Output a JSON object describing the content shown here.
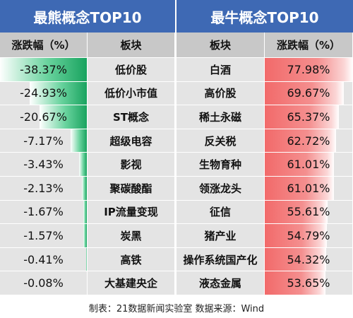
{
  "header": {
    "left_title": "最熊概念TOP10",
    "right_title": "最牛概念TOP10"
  },
  "columns": {
    "left_change": "涨跌幅（%）",
    "left_sector": "板块",
    "right_sector": "板块",
    "right_change": "涨跌幅（%）"
  },
  "chart_data": [
    {
      "type": "table",
      "title": "最熊概念TOP10",
      "columns": [
        "涨跌幅（%）",
        "板块"
      ],
      "rows": [
        {
          "sector": "低价股",
          "value": -38.37,
          "label": "-38.37%"
        },
        {
          "sector": "低价小市值",
          "value": -24.93,
          "label": "-24.93%"
        },
        {
          "sector": "ST概念",
          "value": -20.67,
          "label": "-20.67%"
        },
        {
          "sector": "超级电容",
          "value": -7.17,
          "label": "-7.17%"
        },
        {
          "sector": "影视",
          "value": -3.43,
          "label": "-3.43%"
        },
        {
          "sector": "聚碳酸酯",
          "value": -2.13,
          "label": "-2.13%"
        },
        {
          "sector": "IP流量变现",
          "value": -1.67,
          "label": "-1.67%"
        },
        {
          "sector": "炭黑",
          "value": -1.57,
          "label": "-1.57%"
        },
        {
          "sector": "高铁",
          "value": -0.41,
          "label": "-0.41%"
        },
        {
          "sector": "大基建央企",
          "value": -0.08,
          "label": "-0.08%"
        }
      ],
      "bar_color": "#19a35f"
    },
    {
      "type": "table",
      "title": "最牛概念TOP10",
      "columns": [
        "板块",
        "涨跌幅（%）"
      ],
      "rows": [
        {
          "sector": "白酒",
          "value": 77.98,
          "label": "77.98%"
        },
        {
          "sector": "高价股",
          "value": 69.67,
          "label": "69.67%"
        },
        {
          "sector": "稀土永磁",
          "value": 65.37,
          "label": "65.37%"
        },
        {
          "sector": "反关税",
          "value": 62.72,
          "label": "62.72%"
        },
        {
          "sector": "生物育种",
          "value": 61.01,
          "label": "61.01%"
        },
        {
          "sector": "领涨龙头",
          "value": 61.01,
          "label": "61.01%"
        },
        {
          "sector": "征信",
          "value": 55.61,
          "label": "55.61%"
        },
        {
          "sector": "猪产业",
          "value": 54.79,
          "label": "54.79%"
        },
        {
          "sector": "操作系统国产化",
          "value": 54.32,
          "label": "54.32%"
        },
        {
          "sector": "液态金属",
          "value": 53.65,
          "label": "53.65%"
        }
      ],
      "bar_color": "#f26a6a"
    }
  ],
  "footer": {
    "text": "制表：21数据新闻实验室 数据来源：Wind"
  },
  "colors": {
    "header_bg": "#3e69b4",
    "column_header_bg": "#c8c8c8",
    "row_bg": "#e4e4e4",
    "loss": "#19a35f",
    "gain": "#f26a6a"
  }
}
